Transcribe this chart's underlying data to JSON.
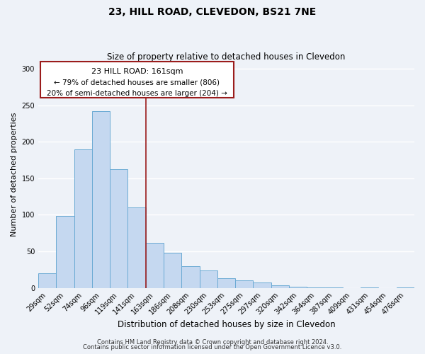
{
  "title": "23, HILL ROAD, CLEVEDON, BS21 7NE",
  "subtitle": "Size of property relative to detached houses in Clevedon",
  "xlabel": "Distribution of detached houses by size in Clevedon",
  "ylabel": "Number of detached properties",
  "bar_heights": [
    20,
    99,
    190,
    242,
    163,
    110,
    62,
    48,
    30,
    24,
    13,
    10,
    7,
    3,
    2,
    1,
    1,
    0,
    1,
    0,
    1
  ],
  "bin_labels": [
    "29sqm",
    "52sqm",
    "74sqm",
    "96sqm",
    "119sqm",
    "141sqm",
    "163sqm",
    "186sqm",
    "208sqm",
    "230sqm",
    "253sqm",
    "275sqm",
    "297sqm",
    "320sqm",
    "342sqm",
    "364sqm",
    "387sqm",
    "409sqm",
    "431sqm",
    "454sqm",
    "476sqm"
  ],
  "bar_color": "#c5d8f0",
  "bar_edge_color": "#6aaad4",
  "vline_x": 6,
  "vline_color": "#9b1c1c",
  "annotation_line1": "23 HILL ROAD: 161sqm",
  "annotation_line2": "← 79% of detached houses are smaller (806)",
  "annotation_line3": "20% of semi-detached houses are larger (204) →",
  "footer_line1": "Contains HM Land Registry data © Crown copyright and database right 2024.",
  "footer_line2": "Contains public sector information licensed under the Open Government Licence v3.0.",
  "ylim": [
    0,
    310
  ],
  "yticks": [
    0,
    50,
    100,
    150,
    200,
    250,
    300
  ],
  "background_color": "#eef2f8",
  "grid_color": "#ffffff"
}
